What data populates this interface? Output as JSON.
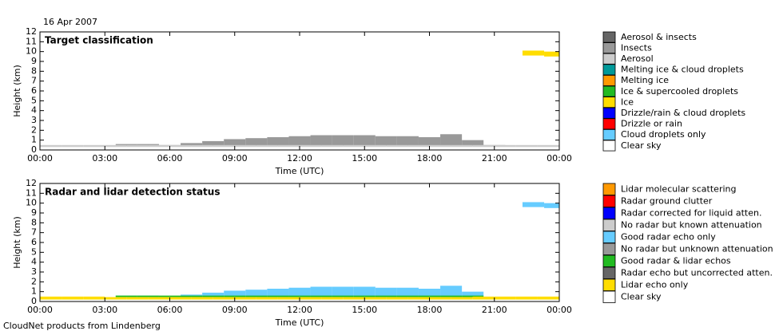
{
  "date": "16 Apr 2007",
  "footer": "CloudNet products from Lindenberg",
  "chart_data": [
    {
      "type": "classification",
      "title": "Target classification",
      "x_label": "Time (UTC)",
      "y_label": "Height (km)",
      "xlim": [
        0,
        24
      ],
      "ylim": [
        0,
        12
      ],
      "xticks": [
        {
          "value": 0,
          "label": "00:00"
        },
        {
          "value": 3,
          "label": "03:00"
        },
        {
          "value": 6,
          "label": "06:00"
        },
        {
          "value": 9,
          "label": "09:00"
        },
        {
          "value": 12,
          "label": "12:00"
        },
        {
          "value": 15,
          "label": "15:00"
        },
        {
          "value": 18,
          "label": "18:00"
        },
        {
          "value": 21,
          "label": "21:00"
        },
        {
          "value": 24,
          "label": "00:00"
        }
      ],
      "yticks": [
        0,
        1,
        2,
        3,
        4,
        5,
        6,
        7,
        8,
        9,
        10,
        11,
        12
      ],
      "series": [
        {
          "name": "Aerosol & insects",
          "color": "#666666"
        },
        {
          "name": "Insects",
          "color": "#999999",
          "x": [
            3.5,
            4.5,
            5.5,
            6.5,
            7.5,
            8.5,
            9.5,
            10.5,
            11.5,
            12.5,
            13.5,
            14.5,
            15.5,
            16.5,
            17.5,
            18.5,
            19.5,
            20.5
          ],
          "values": [
            0.6,
            0.6,
            0.5,
            0.7,
            0.9,
            1.1,
            1.2,
            1.3,
            1.4,
            1.5,
            1.5,
            1.5,
            1.4,
            1.4,
            1.3,
            1.6,
            1.0,
            0.5
          ],
          "base": [
            0.4,
            0.4,
            0.4,
            0.4,
            0.4,
            0.4,
            0.4,
            0.4,
            0.4,
            0.4,
            0.4,
            0.4,
            0.4,
            0.4,
            0.4,
            0.4,
            0.4,
            0.4
          ]
        },
        {
          "name": "Aerosol",
          "color": "#cccccc",
          "x": [
            0,
            1,
            2,
            3,
            4,
            5,
            6,
            7,
            8,
            9,
            10,
            11,
            12,
            13,
            14,
            15,
            16,
            17,
            18,
            19,
            20,
            21,
            22,
            23
          ],
          "values": [
            0.5,
            0.5,
            0.5,
            0.5,
            0.5,
            0.5,
            0.5,
            0.5,
            0.5,
            0.5,
            0.5,
            0.5,
            0.5,
            0.5,
            0.5,
            0.5,
            0.5,
            0.5,
            0.5,
            0.5,
            0.5,
            0.5,
            0.5,
            0.5
          ],
          "base": [
            0.3,
            0.3,
            0.3,
            0.3,
            0.3,
            0.3,
            0.3,
            0.3,
            0.3,
            0.3,
            0.3,
            0.3,
            0.3,
            0.3,
            0.3,
            0.3,
            0.3,
            0.3,
            0.3,
            0.3,
            0.3,
            0.3,
            0.3,
            0.3
          ]
        },
        {
          "name": "Melting ice & cloud droplets",
          "color": "#009999"
        },
        {
          "name": "Melting ice",
          "color": "#ff9900"
        },
        {
          "name": "Ice & supercooled droplets",
          "color": "#22bb22"
        },
        {
          "name": "Ice",
          "color": "#ffdd00",
          "x": [
            22.3,
            23.3
          ],
          "values": [
            10.1,
            10.0
          ],
          "base": [
            9.6,
            9.5
          ]
        },
        {
          "name": "Drizzle/rain & cloud droplets",
          "color": "#0000ff"
        },
        {
          "name": "Drizzle or rain",
          "color": "#ff0000"
        },
        {
          "name": "Cloud droplets only",
          "color": "#66ccff"
        },
        {
          "name": "Clear sky",
          "color": "#ffffff"
        }
      ]
    },
    {
      "type": "classification",
      "title": "Radar and lidar detection status",
      "x_label": "Time (UTC)",
      "y_label": "Height (km)",
      "xlim": [
        0,
        24
      ],
      "ylim": [
        0,
        12
      ],
      "xticks": [
        {
          "value": 0,
          "label": "00:00"
        },
        {
          "value": 3,
          "label": "03:00"
        },
        {
          "value": 6,
          "label": "06:00"
        },
        {
          "value": 9,
          "label": "09:00"
        },
        {
          "value": 12,
          "label": "12:00"
        },
        {
          "value": 15,
          "label": "15:00"
        },
        {
          "value": 18,
          "label": "18:00"
        },
        {
          "value": 21,
          "label": "21:00"
        },
        {
          "value": 24,
          "label": "00:00"
        }
      ],
      "yticks": [
        0,
        1,
        2,
        3,
        4,
        5,
        6,
        7,
        8,
        9,
        10,
        11,
        12
      ],
      "series": [
        {
          "name": "Lidar molecular scattering",
          "color": "#ff9900"
        },
        {
          "name": "Radar ground clutter",
          "color": "#ff0000"
        },
        {
          "name": "Radar corrected for liquid atten.",
          "color": "#0000ff"
        },
        {
          "name": "No radar but known attenuation",
          "color": "#cccccc"
        },
        {
          "name": "Good radar echo only",
          "color": "#66ccff",
          "x": [
            3.5,
            4.5,
            5.5,
            6.5,
            7.5,
            8.5,
            9.5,
            10.5,
            11.5,
            12.5,
            13.5,
            14.5,
            15.5,
            16.5,
            17.5,
            18.5,
            19.5,
            20.5,
            21.5,
            22.3,
            23.3
          ],
          "values": [
            0.6,
            0.6,
            0.5,
            0.7,
            0.9,
            1.1,
            1.2,
            1.3,
            1.4,
            1.5,
            1.5,
            1.5,
            1.4,
            1.4,
            1.3,
            1.6,
            1.0,
            0.5,
            null,
            10.1,
            10.0
          ],
          "base": [
            0.5,
            0.5,
            0.5,
            0.5,
            0.5,
            0.5,
            0.5,
            0.5,
            0.5,
            0.5,
            0.5,
            0.5,
            0.5,
            0.5,
            0.5,
            0.5,
            0.5,
            0.5,
            null,
            9.6,
            9.5
          ]
        },
        {
          "name": "No radar but unknown attenuation",
          "color": "#999999"
        },
        {
          "name": "Good radar & lidar echos",
          "color": "#22bb22",
          "x": [
            3.5,
            4.5,
            5.5,
            6.5,
            7.5,
            8.5,
            9.5,
            10.5,
            11.5,
            12.5,
            13.5,
            14.5,
            15.5,
            16.5,
            17.5,
            18.5,
            19.5
          ],
          "values": [
            0.6,
            0.6,
            0.6,
            0.6,
            0.6,
            0.6,
            0.6,
            0.6,
            0.6,
            0.6,
            0.6,
            0.6,
            0.6,
            0.6,
            0.6,
            0.6,
            0.6
          ],
          "base": [
            0.45,
            0.45,
            0.45,
            0.45,
            0.45,
            0.45,
            0.45,
            0.45,
            0.45,
            0.45,
            0.45,
            0.45,
            0.45,
            0.45,
            0.45,
            0.45,
            0.45
          ]
        },
        {
          "name": "Radar echo but uncorrected atten.",
          "color": "#666666"
        },
        {
          "name": "Lidar echo only",
          "color": "#ffdd00",
          "x": [
            0,
            1,
            2,
            3,
            4,
            5,
            6,
            7,
            8,
            9,
            10,
            11,
            12,
            13,
            14,
            15,
            16,
            17,
            18,
            19,
            20,
            21,
            22,
            23
          ],
          "values": [
            0.5,
            0.5,
            0.5,
            0.45,
            0.45,
            0.45,
            0.45,
            0.45,
            0.45,
            0.45,
            0.45,
            0.45,
            0.45,
            0.45,
            0.45,
            0.45,
            0.45,
            0.45,
            0.45,
            0.45,
            0.5,
            0.5,
            0.5,
            0.5
          ],
          "base": [
            0.2,
            0.2,
            0.2,
            0.2,
            0.2,
            0.2,
            0.2,
            0.2,
            0.2,
            0.2,
            0.2,
            0.2,
            0.2,
            0.2,
            0.2,
            0.2,
            0.2,
            0.2,
            0.2,
            0.2,
            0.2,
            0.2,
            0.2,
            0.2
          ]
        },
        {
          "name": "Clear sky",
          "color": "#ffffff"
        }
      ]
    }
  ]
}
